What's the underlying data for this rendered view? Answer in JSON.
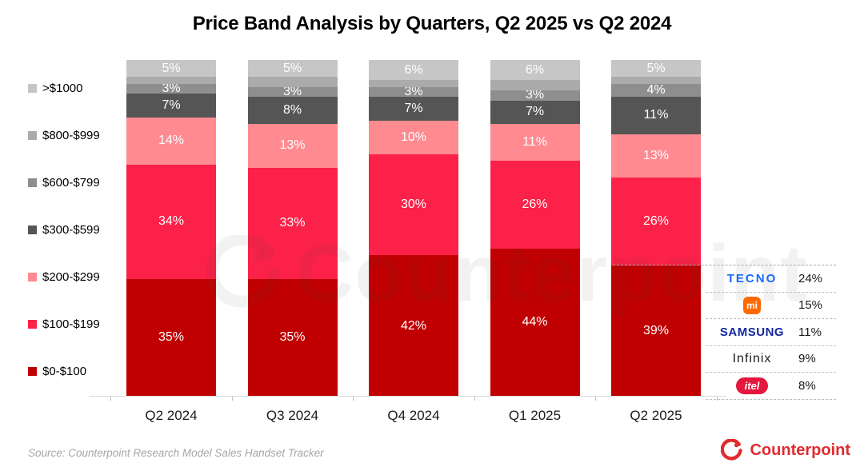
{
  "title": "Price Band Analysis by Quarters, Q2 2025 vs Q2 2024",
  "watermark_text": "Counterpoint",
  "source_note": "Source: Counterpoint Research Model Sales Handset Tracker",
  "footer_logo_text": "Counterpoint",
  "colors": {
    "brand_red": "#E12B30",
    "axis_line": "#D9D9D9",
    "dashed_line": "#ABABAB"
  },
  "chart_data": {
    "type": "bar",
    "stacked": true,
    "unit": "%",
    "title": "Price Band Analysis by Quarters, Q2 2025 vs Q2 2024",
    "categories": [
      "Q2 2024",
      "Q3 2024",
      "Q4 2024",
      "Q1 2025",
      "Q2 2025"
    ],
    "series": [
      {
        "name": "$0-$100",
        "color": "#C00000",
        "values": [
          35,
          35,
          42,
          44,
          39
        ],
        "labels_visible": true
      },
      {
        "name": "$100-$199",
        "color": "#FB2148",
        "values": [
          34,
          33,
          30,
          26,
          26
        ],
        "labels_visible": true
      },
      {
        "name": "$200-$299",
        "color": "#FF8A90",
        "values": [
          14,
          13,
          10,
          11,
          13
        ],
        "labels_visible": true
      },
      {
        "name": "$300-$599",
        "color": "#555555",
        "values": [
          7,
          8,
          7,
          7,
          11
        ],
        "labels_visible": true
      },
      {
        "name": "$600-$799",
        "color": "#8E8E8E",
        "values": [
          3,
          3,
          3,
          3,
          4
        ],
        "labels_visible": true
      },
      {
        "name": "$800-$999",
        "color": "#ABABAB",
        "values": [
          2,
          3,
          2,
          3,
          2
        ],
        "labels_visible": false
      },
      {
        "name": ">$1000",
        "color": "#C6C6C6",
        "values": [
          5,
          5,
          6,
          6,
          5
        ],
        "labels_visible": true
      }
    ],
    "legend_top_to_bottom": [
      ">$1000",
      "$800-$999",
      "$600-$799",
      "$300-$599",
      "$200-$299",
      "$100-$199",
      "$0-$100"
    ],
    "ylim": [
      0,
      100
    ],
    "gridlines": false,
    "legend_position": "left"
  },
  "brand_panel": {
    "linked_segment": {
      "category": "Q2 2025",
      "band": "$0-$100"
    },
    "rows": [
      {
        "name": "TECNO",
        "share": "24%",
        "logo": {
          "kind": "text",
          "text": "TECNO",
          "color": "#1769FF"
        }
      },
      {
        "name": "Mi",
        "share": "15%",
        "logo": {
          "kind": "badge-sq",
          "text": "mi",
          "bg": "#FF6900"
        }
      },
      {
        "name": "SAMSUNG",
        "share": "11%",
        "logo": {
          "kind": "text",
          "text": "SAMSUNG",
          "color": "#1428A0"
        }
      },
      {
        "name": "Infinix",
        "share": "9%",
        "logo": {
          "kind": "text",
          "text": "Infinix",
          "color": "#1A1A1A"
        }
      },
      {
        "name": "itel",
        "share": "8%",
        "logo": {
          "kind": "badge-pill",
          "text": "itel",
          "bg": "#E4173C"
        }
      }
    ]
  }
}
